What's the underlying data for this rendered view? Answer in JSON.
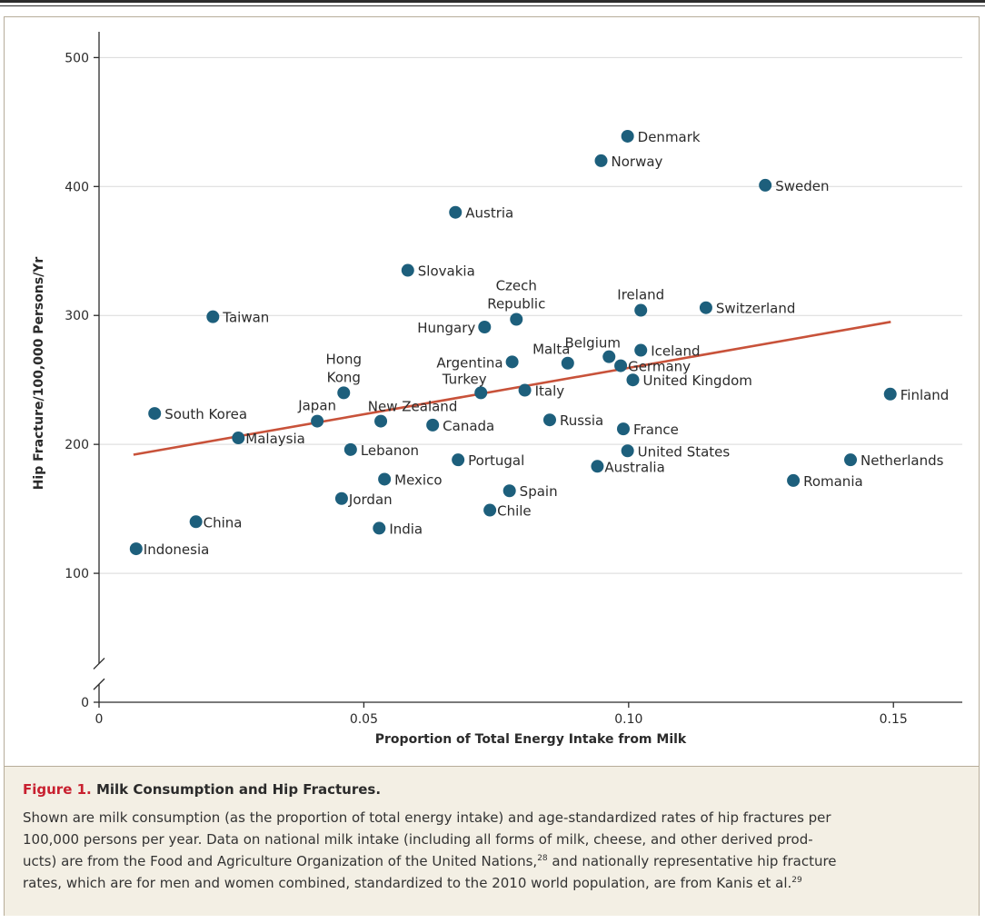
{
  "colors": {
    "point": "#1d5f7c",
    "trend_line": "#c8523a",
    "caption_background": "#f3efe4",
    "figure_number": "#c8202f"
  },
  "figure": {
    "number": "Figure 1.",
    "title": "Milk Consumption and Hip Fractures.",
    "caption_lines": [
      "Shown are milk consumption (as the proportion of total energy intake) and age-standardized rates of hip fractures per",
      "100,000 persons per year. Data on national milk intake (including all forms of milk, cheese, and other derived prod-",
      "ucts) are from the Food and Agriculture Organization of the United Nations,",
      " and nationally representative hip fracture",
      "rates, which are for men and women combined, standardized to the 2010 world population, are from Kanis et al."
    ],
    "ref_28": "28",
    "ref_29": "29"
  },
  "chart_data": {
    "type": "scatter",
    "xlabel": "Proportion of Total Energy Intake from Milk",
    "ylabel": "Hip Fracture/100,000 Persons/Yr",
    "xlim": [
      0,
      0.163
    ],
    "ylim": [
      0,
      520
    ],
    "y_axis_break": "between 0 and 100",
    "x_ticks": [
      {
        "value": 0,
        "label": "0"
      },
      {
        "value": 0.05,
        "label": "0.05"
      },
      {
        "value": 0.1,
        "label": "0.10"
      },
      {
        "value": 0.15,
        "label": "0.15"
      }
    ],
    "y_ticks": [
      {
        "value": 0,
        "label": "0"
      },
      {
        "value": 100,
        "label": "100"
      },
      {
        "value": 200,
        "label": "200"
      },
      {
        "value": 300,
        "label": "300"
      },
      {
        "value": 400,
        "label": "400"
      },
      {
        "value": 500,
        "label": "500"
      }
    ],
    "grid": "horizontal",
    "trend_line": {
      "x": [
        0.0065,
        0.1495
      ],
      "y": [
        192,
        295
      ]
    },
    "points": [
      {
        "label": "Denmark",
        "x": 0.0998,
        "y": 439,
        "anchor": "right"
      },
      {
        "label": "Norway",
        "x": 0.0948,
        "y": 420,
        "anchor": "right"
      },
      {
        "label": "Sweden",
        "x": 0.1258,
        "y": 401,
        "anchor": "right"
      },
      {
        "label": "Austria",
        "x": 0.0673,
        "y": 380,
        "anchor": "right"
      },
      {
        "label": "Slovakia",
        "x": 0.0583,
        "y": 335,
        "anchor": "right"
      },
      {
        "label": "Czech Republic",
        "x": 0.0788,
        "y": 297,
        "anchor": "above",
        "lines": [
          "Czech",
          "Republic"
        ]
      },
      {
        "label": "Ireland",
        "x": 0.1023,
        "y": 304,
        "anchor": "above"
      },
      {
        "label": "Switzerland",
        "x": 0.1146,
        "y": 306,
        "anchor": "right"
      },
      {
        "label": "Taiwan",
        "x": 0.0215,
        "y": 299,
        "anchor": "right"
      },
      {
        "label": "Hungary",
        "x": 0.0728,
        "y": 291,
        "anchor": "left"
      },
      {
        "label": "Iceland",
        "x": 0.1023,
        "y": 273,
        "anchor": "right"
      },
      {
        "label": "Belgium",
        "x": 0.0963,
        "y": 268,
        "anchor": "above-left"
      },
      {
        "label": "Malta",
        "x": 0.0885,
        "y": 263,
        "anchor": "above-left"
      },
      {
        "label": "Argentina",
        "x": 0.078,
        "y": 264,
        "anchor": "left"
      },
      {
        "label": "Germany",
        "x": 0.0985,
        "y": 261,
        "anchor": "right-tight"
      },
      {
        "label": "United Kingdom",
        "x": 0.1008,
        "y": 250,
        "anchor": "right"
      },
      {
        "label": "Hong Kong",
        "x": 0.0462,
        "y": 240,
        "anchor": "above",
        "lines": [
          "Hong",
          "Kong"
        ]
      },
      {
        "label": "Turkey",
        "x": 0.0721,
        "y": 240,
        "anchor": "above-left"
      },
      {
        "label": "Italy",
        "x": 0.0804,
        "y": 242,
        "anchor": "right"
      },
      {
        "label": "Finland",
        "x": 0.1494,
        "y": 239,
        "anchor": "right"
      },
      {
        "label": "South Korea",
        "x": 0.0105,
        "y": 224,
        "anchor": "right"
      },
      {
        "label": "Japan",
        "x": 0.0412,
        "y": 218,
        "anchor": "above"
      },
      {
        "label": "New Zealand",
        "x": 0.0532,
        "y": 218,
        "anchor": "above-right"
      },
      {
        "label": "Canada",
        "x": 0.063,
        "y": 215,
        "anchor": "right"
      },
      {
        "label": "Russia",
        "x": 0.0851,
        "y": 219,
        "anchor": "right"
      },
      {
        "label": "France",
        "x": 0.099,
        "y": 212,
        "anchor": "right"
      },
      {
        "label": "Malaysia",
        "x": 0.0263,
        "y": 205,
        "anchor": "right-tight"
      },
      {
        "label": "Lebanon",
        "x": 0.0475,
        "y": 196,
        "anchor": "right"
      },
      {
        "label": "United States",
        "x": 0.0998,
        "y": 195,
        "anchor": "right"
      },
      {
        "label": "Portugal",
        "x": 0.0678,
        "y": 188,
        "anchor": "right"
      },
      {
        "label": "Netherlands",
        "x": 0.1419,
        "y": 188,
        "anchor": "right"
      },
      {
        "label": "Australia",
        "x": 0.0941,
        "y": 183,
        "anchor": "right-tight"
      },
      {
        "label": "Mexico",
        "x": 0.0539,
        "y": 173,
        "anchor": "right"
      },
      {
        "label": "Romania",
        "x": 0.1311,
        "y": 172,
        "anchor": "right"
      },
      {
        "label": "Spain",
        "x": 0.0775,
        "y": 164,
        "anchor": "right"
      },
      {
        "label": "Jordan",
        "x": 0.0458,
        "y": 158,
        "anchor": "right-tight"
      },
      {
        "label": "Chile",
        "x": 0.0738,
        "y": 149,
        "anchor": "right-tight"
      },
      {
        "label": "China",
        "x": 0.0183,
        "y": 140,
        "anchor": "right-tight"
      },
      {
        "label": "India",
        "x": 0.0529,
        "y": 135,
        "anchor": "right"
      },
      {
        "label": "Indonesia",
        "x": 0.007,
        "y": 119,
        "anchor": "right-tight"
      }
    ]
  }
}
